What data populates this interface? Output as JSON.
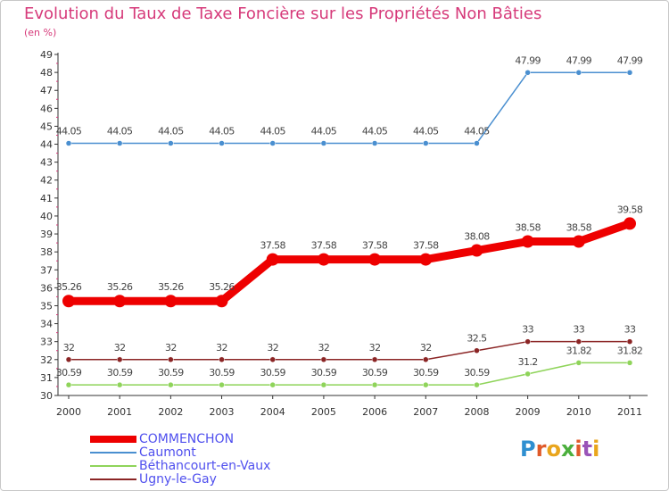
{
  "header": {
    "title": "Evolution du Taux de Taxe Foncière sur les Propriétés Non Bâties",
    "subtitle": "(en %)"
  },
  "logo": {
    "text": "Proxiti",
    "letter_colors": [
      "#2f8fd0",
      "#e05a2a",
      "#e9a51c",
      "#4caf3d",
      "#e05a2a",
      "#9a54b8",
      "#e9a51c"
    ]
  },
  "chart_data": {
    "type": "line",
    "title": "Evolution du Taux de Taxe Foncière sur les Propriétés Non Bâties",
    "ylabel": "(en %)",
    "xlabel": "",
    "x": [
      "2000",
      "2001",
      "2002",
      "2003",
      "2004",
      "2005",
      "2006",
      "2007",
      "2008",
      "2009",
      "2010",
      "2011"
    ],
    "ylim": [
      30,
      49
    ],
    "yticks": [
      30,
      31,
      32,
      33,
      34,
      35,
      36,
      37,
      38,
      39,
      40,
      41,
      42,
      43,
      44,
      45,
      46,
      47,
      48,
      49
    ],
    "grid": false,
    "legend_position": "bottom-left",
    "series": [
      {
        "name": "Caumont",
        "color": "#4a8fd0",
        "emphasis": false,
        "values": [
          44.05,
          44.05,
          44.05,
          44.05,
          44.05,
          44.05,
          44.05,
          44.05,
          44.05,
          47.99,
          47.99,
          47.99
        ],
        "labels": [
          "44.05",
          "44.05",
          "44.05",
          "44.05",
          "44.05",
          "44.05",
          "44.05",
          "44.05",
          "44.05",
          "47.99",
          "47.99",
          "47.99"
        ]
      },
      {
        "name": "Béthancourt-en-Vaux",
        "color": "#8fd45a",
        "emphasis": false,
        "values": [
          30.59,
          30.59,
          30.59,
          30.59,
          30.59,
          30.59,
          30.59,
          30.59,
          30.59,
          31.2,
          31.82,
          31.82
        ],
        "labels": [
          "30.59",
          "30.59",
          "30.59",
          "30.59",
          "30.59",
          "30.59",
          "30.59",
          "30.59",
          "30.59",
          "31.2",
          "31.82",
          "31.82"
        ]
      },
      {
        "name": "Ugny-le-Gay",
        "color": "#8b2525",
        "emphasis": false,
        "values": [
          32,
          32,
          32,
          32,
          32,
          32,
          32,
          32,
          32.5,
          33,
          33,
          33
        ],
        "labels": [
          "32",
          "32",
          "32",
          "32",
          "32",
          "32",
          "32",
          "32",
          "32.5",
          "33",
          "33",
          "33"
        ]
      },
      {
        "name": "COMMENCHON",
        "color": "#ee0000",
        "emphasis": true,
        "values": [
          35.26,
          35.26,
          35.26,
          35.26,
          37.58,
          37.58,
          37.58,
          37.58,
          38.08,
          38.58,
          38.58,
          39.58
        ],
        "labels": [
          "35.26",
          "35.26",
          "35.26",
          "35.26",
          "37.58",
          "37.58",
          "37.58",
          "37.58",
          "38.08",
          "38.58",
          "38.58",
          "39.58"
        ]
      }
    ],
    "legend_order": [
      "COMMENCHON",
      "Caumont",
      "Béthancourt-en-Vaux",
      "Ugny-le-Gay"
    ]
  }
}
